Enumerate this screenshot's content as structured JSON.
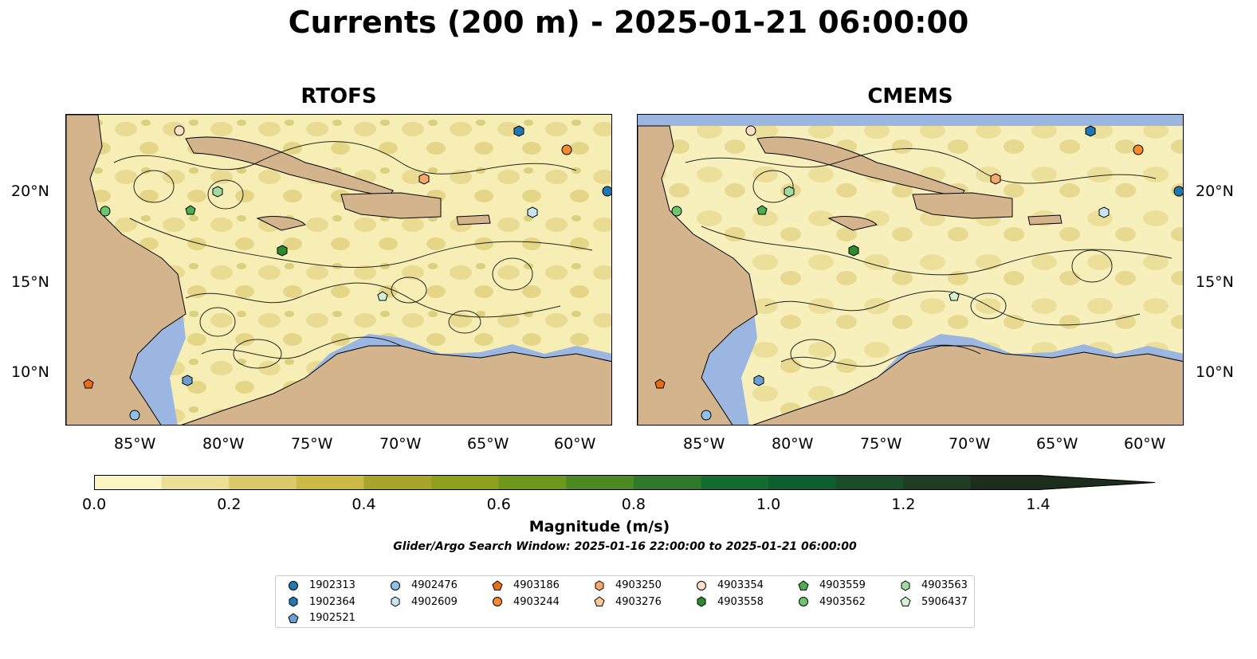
{
  "title": "Currents (200 m) - 2025-01-21 06:00:00",
  "panels": [
    {
      "label": "RTOFS"
    },
    {
      "label": "CMEMS"
    }
  ],
  "axes": {
    "lon_ticks": [
      "85°W",
      "80°W",
      "75°W",
      "70°W",
      "65°W",
      "60°W"
    ],
    "lat_ticks": [
      "20°N",
      "15°N",
      "10°N"
    ]
  },
  "colorbar": {
    "label": "Magnitude (m/s)",
    "ticks": [
      "0.0",
      "0.2",
      "0.4",
      "0.6",
      "0.8",
      "1.0",
      "1.2",
      "1.4"
    ],
    "colors": [
      "#fbf5c4",
      "#eddf96",
      "#dcca6a",
      "#cdb946",
      "#a9a52b",
      "#8fa11c",
      "#6f971b",
      "#4d8a22",
      "#2f7a2a",
      "#136d31",
      "#0b5f31",
      "#1b4d2b",
      "#1f3d24",
      "#1c2d1b"
    ]
  },
  "search_window": "Glider/Argo Search Window: 2025-01-16 22:00:00 to 2025-01-21 06:00:00",
  "legend": {
    "items": [
      {
        "id": "1902313",
        "marker": "circle",
        "color": "#1f77b4"
      },
      {
        "id": "1902364",
        "marker": "hexagon",
        "color": "#1f77b4"
      },
      {
        "id": "1902521",
        "marker": "pentagon",
        "color": "#6b9fd4"
      },
      {
        "id": "4902476",
        "marker": "circle",
        "color": "#8ec2e8"
      },
      {
        "id": "4902609",
        "marker": "hexagon",
        "color": "#c7e5f5"
      },
      {
        "id": "4903186",
        "marker": "pentagon",
        "color": "#ec6c16"
      },
      {
        "id": "4903244",
        "marker": "circle",
        "color": "#f58a2e"
      },
      {
        "id": "4903250",
        "marker": "hexagon",
        "color": "#f7a866"
      },
      {
        "id": "4903276",
        "marker": "pentagon",
        "color": "#fbc792"
      },
      {
        "id": "4903354",
        "marker": "circle",
        "color": "#fce0c6"
      },
      {
        "id": "4903558",
        "marker": "hexagon",
        "color": "#2c8b2c"
      },
      {
        "id": "4903559",
        "marker": "pentagon",
        "color": "#4cae4c"
      },
      {
        "id": "4903562",
        "marker": "circle",
        "color": "#6cc66c"
      },
      {
        "id": "4903563",
        "marker": "hexagon",
        "color": "#9fdc9f"
      },
      {
        "id": "5906437",
        "marker": "pentagon",
        "color": "#d3f2d3"
      }
    ]
  },
  "map_colors": {
    "land": "#d4b48c",
    "ocean_shelf": "#9bb6e0"
  }
}
